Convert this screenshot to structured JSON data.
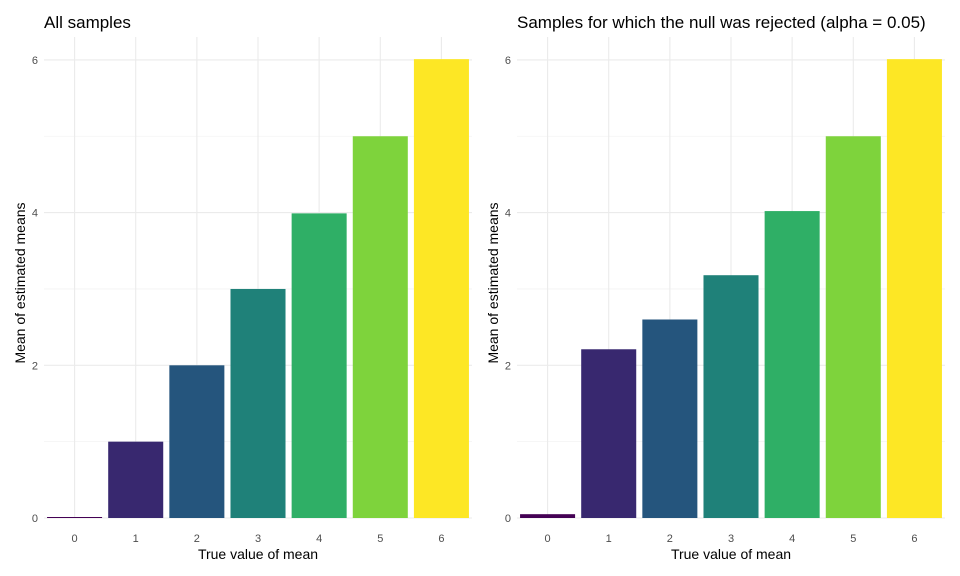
{
  "chart_data": [
    {
      "type": "bar",
      "title": "All samples",
      "xlabel": "True value of mean",
      "ylabel": "Mean of estimated means",
      "categories": [
        "0",
        "1",
        "2",
        "3",
        "4",
        "5",
        "6"
      ],
      "values": [
        0.0,
        1.0,
        2.0,
        3.0,
        3.99,
        5.0,
        6.01
      ],
      "yticks": [
        0,
        2,
        4,
        6
      ],
      "ylim": [
        0,
        6.3
      ],
      "grid": true,
      "colors": [
        "#440154",
        "#38286F",
        "#25557D",
        "#1F8179",
        "#2FAF66",
        "#7ED33C",
        "#FDE725"
      ]
    },
    {
      "type": "bar",
      "title": "Samples for which the null was rejected (alpha = 0.05)",
      "xlabel": "True value of mean",
      "ylabel": "Mean of estimated means",
      "categories": [
        "0",
        "1",
        "2",
        "3",
        "4",
        "5",
        "6"
      ],
      "values": [
        0.05,
        2.21,
        2.6,
        3.18,
        4.02,
        5.0,
        6.01
      ],
      "yticks": [
        0,
        2,
        4,
        6
      ],
      "ylim": [
        0,
        6.3
      ],
      "grid": true,
      "colors": [
        "#440154",
        "#38286F",
        "#25557D",
        "#1F8179",
        "#2FAF66",
        "#7ED33C",
        "#FDE725"
      ]
    }
  ]
}
